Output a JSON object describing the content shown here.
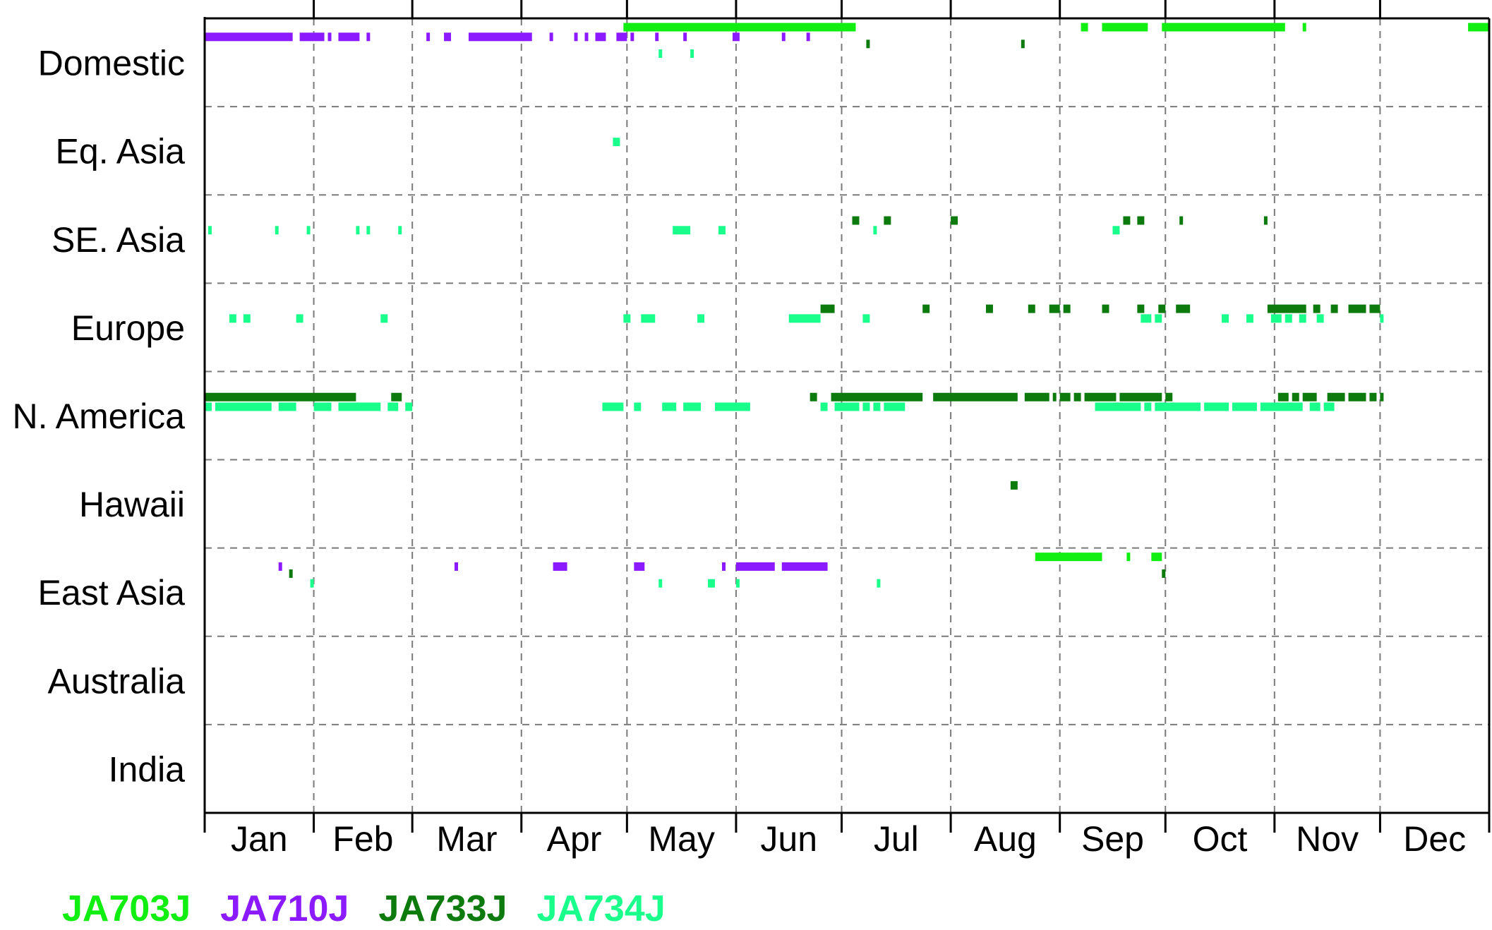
{
  "chart_data": {
    "type": "timeline",
    "title": "",
    "xlabel": "",
    "ylabel": "",
    "months": [
      "Jan",
      "Feb",
      "Mar",
      "Apr",
      "May",
      "Jun",
      "Jul",
      "Aug",
      "Sep",
      "Oct",
      "Nov",
      "Dec"
    ],
    "rows": [
      "Domestic",
      "Eq. Asia",
      "SE. Asia",
      "Europe",
      "N. America",
      "Hawaii",
      "East Asia",
      "Australia",
      "India"
    ],
    "xlim_day_of_year": [
      0,
      365
    ],
    "grid": true,
    "legend_position": "bottom",
    "series": [
      {
        "name": "JA703J",
        "color": "#11ee11",
        "spans": [
          {
            "row": "Domestic",
            "start": 119,
            "end": 185
          },
          {
            "row": "Domestic",
            "start": 249,
            "end": 251
          },
          {
            "row": "Domestic",
            "start": 255,
            "end": 268
          },
          {
            "row": "Domestic",
            "start": 272,
            "end": 307
          },
          {
            "row": "Domestic",
            "start": 312,
            "end": 313
          },
          {
            "row": "Domestic",
            "start": 359,
            "end": 365
          },
          {
            "row": "East Asia",
            "start": 236,
            "end": 255
          },
          {
            "row": "East Asia",
            "start": 262,
            "end": 263
          },
          {
            "row": "East Asia",
            "start": 269,
            "end": 272
          }
        ]
      },
      {
        "name": "JA710J",
        "color": "#8c1aff",
        "spans": [
          {
            "row": "Domestic",
            "start": 0,
            "end": 25
          },
          {
            "row": "Domestic",
            "start": 27,
            "end": 34
          },
          {
            "row": "Domestic",
            "start": 35,
            "end": 36
          },
          {
            "row": "Domestic",
            "start": 38,
            "end": 44
          },
          {
            "row": "Domestic",
            "start": 46,
            "end": 47
          },
          {
            "row": "Domestic",
            "start": 63,
            "end": 64
          },
          {
            "row": "Domestic",
            "start": 68,
            "end": 70
          },
          {
            "row": "Domestic",
            "start": 75,
            "end": 93
          },
          {
            "row": "Domestic",
            "start": 98,
            "end": 99
          },
          {
            "row": "Domestic",
            "start": 105,
            "end": 106
          },
          {
            "row": "Domestic",
            "start": 108,
            "end": 109
          },
          {
            "row": "Domestic",
            "start": 111,
            "end": 114
          },
          {
            "row": "Domestic",
            "start": 117,
            "end": 120
          },
          {
            "row": "Domestic",
            "start": 121,
            "end": 122
          },
          {
            "row": "Domestic",
            "start": 128,
            "end": 129
          },
          {
            "row": "Domestic",
            "start": 136,
            "end": 137
          },
          {
            "row": "Domestic",
            "start": 150,
            "end": 152
          },
          {
            "row": "Domestic",
            "start": 164,
            "end": 165
          },
          {
            "row": "Domestic",
            "start": 171,
            "end": 172
          },
          {
            "row": "East Asia",
            "start": 21,
            "end": 22
          },
          {
            "row": "East Asia",
            "start": 71,
            "end": 72
          },
          {
            "row": "East Asia",
            "start": 99,
            "end": 103
          },
          {
            "row": "East Asia",
            "start": 122,
            "end": 125
          },
          {
            "row": "East Asia",
            "start": 147,
            "end": 148
          },
          {
            "row": "East Asia",
            "start": 151,
            "end": 162
          },
          {
            "row": "East Asia",
            "start": 164,
            "end": 177
          }
        ]
      },
      {
        "name": "JA733J",
        "color": "#0d7a0d",
        "spans": [
          {
            "row": "Domestic",
            "start": 188,
            "end": 189
          },
          {
            "row": "Domestic",
            "start": 232,
            "end": 233
          },
          {
            "row": "SE. Asia",
            "start": 184,
            "end": 186
          },
          {
            "row": "SE. Asia",
            "start": 193,
            "end": 195
          },
          {
            "row": "SE. Asia",
            "start": 212,
            "end": 214
          },
          {
            "row": "SE. Asia",
            "start": 261,
            "end": 263
          },
          {
            "row": "SE. Asia",
            "start": 265,
            "end": 267
          },
          {
            "row": "SE. Asia",
            "start": 277,
            "end": 278
          },
          {
            "row": "SE. Asia",
            "start": 301,
            "end": 302
          },
          {
            "row": "Europe",
            "start": 175,
            "end": 179
          },
          {
            "row": "Europe",
            "start": 204,
            "end": 206
          },
          {
            "row": "Europe",
            "start": 222,
            "end": 224
          },
          {
            "row": "Europe",
            "start": 234,
            "end": 236
          },
          {
            "row": "Europe",
            "start": 240,
            "end": 243
          },
          {
            "row": "Europe",
            "start": 244,
            "end": 246
          },
          {
            "row": "Europe",
            "start": 255,
            "end": 257
          },
          {
            "row": "Europe",
            "start": 265,
            "end": 267
          },
          {
            "row": "Europe",
            "start": 271,
            "end": 273
          },
          {
            "row": "Europe",
            "start": 276,
            "end": 280
          },
          {
            "row": "Europe",
            "start": 302,
            "end": 313
          },
          {
            "row": "Europe",
            "start": 315,
            "end": 317
          },
          {
            "row": "Europe",
            "start": 320,
            "end": 322
          },
          {
            "row": "Europe",
            "start": 325,
            "end": 330
          },
          {
            "row": "Europe",
            "start": 331,
            "end": 334
          },
          {
            "row": "N. America",
            "start": 0,
            "end": 43
          },
          {
            "row": "N. America",
            "start": 53,
            "end": 56
          },
          {
            "row": "N. America",
            "start": 172,
            "end": 174
          },
          {
            "row": "N. America",
            "start": 178,
            "end": 204
          },
          {
            "row": "N. America",
            "start": 207,
            "end": 231
          },
          {
            "row": "N. America",
            "start": 233,
            "end": 240
          },
          {
            "row": "N. America",
            "start": 241,
            "end": 242
          },
          {
            "row": "N. America",
            "start": 243,
            "end": 246
          },
          {
            "row": "N. America",
            "start": 247,
            "end": 249
          },
          {
            "row": "N. America",
            "start": 250,
            "end": 259
          },
          {
            "row": "N. America",
            "start": 260,
            "end": 272
          },
          {
            "row": "N. America",
            "start": 273,
            "end": 275
          },
          {
            "row": "N. America",
            "start": 305,
            "end": 308
          },
          {
            "row": "N. America",
            "start": 309,
            "end": 311
          },
          {
            "row": "N. America",
            "start": 312,
            "end": 316
          },
          {
            "row": "N. America",
            "start": 319,
            "end": 324
          },
          {
            "row": "N. America",
            "start": 325,
            "end": 330
          },
          {
            "row": "N. America",
            "start": 331,
            "end": 333
          },
          {
            "row": "N. America",
            "start": 334,
            "end": 335
          },
          {
            "row": "Hawaii",
            "start": 229,
            "end": 231
          },
          {
            "row": "East Asia",
            "start": 24,
            "end": 25
          },
          {
            "row": "East Asia",
            "start": 272,
            "end": 273
          }
        ]
      },
      {
        "name": "JA734J",
        "color": "#1aff8c",
        "spans": [
          {
            "row": "Domestic",
            "start": 129,
            "end": 130
          },
          {
            "row": "Domestic",
            "start": 138,
            "end": 139
          },
          {
            "row": "Eq. Asia",
            "start": 116,
            "end": 118
          },
          {
            "row": "SE. Asia",
            "start": 1,
            "end": 2
          },
          {
            "row": "SE. Asia",
            "start": 20,
            "end": 21
          },
          {
            "row": "SE. Asia",
            "start": 29,
            "end": 30
          },
          {
            "row": "SE. Asia",
            "start": 43,
            "end": 44
          },
          {
            "row": "SE. Asia",
            "start": 46,
            "end": 47
          },
          {
            "row": "SE. Asia",
            "start": 55,
            "end": 56
          },
          {
            "row": "SE. Asia",
            "start": 133,
            "end": 138
          },
          {
            "row": "SE. Asia",
            "start": 146,
            "end": 148
          },
          {
            "row": "SE. Asia",
            "start": 190,
            "end": 191
          },
          {
            "row": "SE. Asia",
            "start": 258,
            "end": 260
          },
          {
            "row": "Europe",
            "start": 7,
            "end": 9
          },
          {
            "row": "Europe",
            "start": 11,
            "end": 13
          },
          {
            "row": "Europe",
            "start": 26,
            "end": 28
          },
          {
            "row": "Europe",
            "start": 50,
            "end": 52
          },
          {
            "row": "Europe",
            "start": 119,
            "end": 121
          },
          {
            "row": "Europe",
            "start": 124,
            "end": 128
          },
          {
            "row": "Europe",
            "start": 140,
            "end": 142
          },
          {
            "row": "Europe",
            "start": 166,
            "end": 175
          },
          {
            "row": "Europe",
            "start": 187,
            "end": 189
          },
          {
            "row": "Europe",
            "start": 266,
            "end": 269
          },
          {
            "row": "Europe",
            "start": 270,
            "end": 272
          },
          {
            "row": "Europe",
            "start": 289,
            "end": 291
          },
          {
            "row": "Europe",
            "start": 296,
            "end": 298
          },
          {
            "row": "Europe",
            "start": 303,
            "end": 306
          },
          {
            "row": "Europe",
            "start": 307,
            "end": 309
          },
          {
            "row": "Europe",
            "start": 311,
            "end": 313
          },
          {
            "row": "Europe",
            "start": 316,
            "end": 318
          },
          {
            "row": "Europe",
            "start": 334,
            "end": 335
          },
          {
            "row": "N. America",
            "start": 0,
            "end": 2
          },
          {
            "row": "N. America",
            "start": 3,
            "end": 19
          },
          {
            "row": "N. America",
            "start": 21,
            "end": 26
          },
          {
            "row": "N. America",
            "start": 31,
            "end": 36
          },
          {
            "row": "N. America",
            "start": 38,
            "end": 50
          },
          {
            "row": "N. America",
            "start": 52,
            "end": 55
          },
          {
            "row": "N. America",
            "start": 57,
            "end": 59
          },
          {
            "row": "N. America",
            "start": 113,
            "end": 119
          },
          {
            "row": "N. America",
            "start": 122,
            "end": 124
          },
          {
            "row": "N. America",
            "start": 130,
            "end": 134
          },
          {
            "row": "N. America",
            "start": 136,
            "end": 141
          },
          {
            "row": "N. America",
            "start": 145,
            "end": 155
          },
          {
            "row": "N. America",
            "start": 175,
            "end": 177
          },
          {
            "row": "N. America",
            "start": 179,
            "end": 186
          },
          {
            "row": "N. America",
            "start": 187,
            "end": 189
          },
          {
            "row": "N. America",
            "start": 190,
            "end": 192
          },
          {
            "row": "N. America",
            "start": 193,
            "end": 199
          },
          {
            "row": "N. America",
            "start": 253,
            "end": 266
          },
          {
            "row": "N. America",
            "start": 267,
            "end": 269
          },
          {
            "row": "N. America",
            "start": 270,
            "end": 283
          },
          {
            "row": "N. America",
            "start": 284,
            "end": 291
          },
          {
            "row": "N. America",
            "start": 292,
            "end": 299
          },
          {
            "row": "N. America",
            "start": 300,
            "end": 312
          },
          {
            "row": "N. America",
            "start": 314,
            "end": 317
          },
          {
            "row": "N. America",
            "start": 318,
            "end": 321
          },
          {
            "row": "East Asia",
            "start": 30,
            "end": 31
          },
          {
            "row": "East Asia",
            "start": 129,
            "end": 130
          },
          {
            "row": "East Asia",
            "start": 143,
            "end": 145
          },
          {
            "row": "East Asia",
            "start": 151,
            "end": 152
          },
          {
            "row": "East Asia",
            "start": 191,
            "end": 192
          }
        ]
      }
    ]
  }
}
